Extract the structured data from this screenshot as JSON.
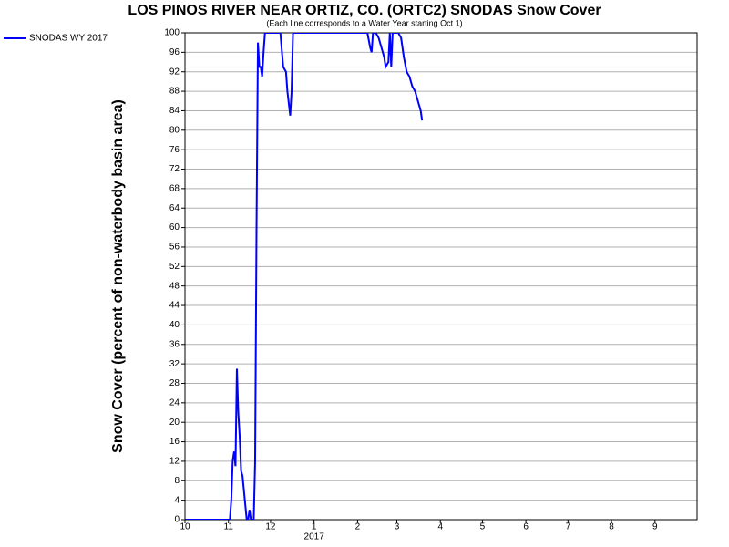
{
  "chart_data": {
    "type": "line",
    "title": "LOS PINOS RIVER NEAR ORTIZ, CO. (ORTC2) SNODAS Snow Cover",
    "subtitle": "(Each line corresponds to a Water Year starting Oct 1)",
    "y_label": "Snow Cover (percent of non-waterbody basin area)",
    "year_label": "2017",
    "xlim": [
      0,
      365
    ],
    "xticks": [
      {
        "value": 0,
        "label": "10"
      },
      {
        "value": 31,
        "label": "11"
      },
      {
        "value": 61,
        "label": "12"
      },
      {
        "value": 92,
        "label": "1"
      },
      {
        "value": 123,
        "label": "2"
      },
      {
        "value": 151,
        "label": "3"
      },
      {
        "value": 182,
        "label": "4"
      },
      {
        "value": 212,
        "label": "5"
      },
      {
        "value": 243,
        "label": "6"
      },
      {
        "value": 273,
        "label": "7"
      },
      {
        "value": 304,
        "label": "8"
      },
      {
        "value": 335,
        "label": "9"
      }
    ],
    "ylim": [
      0,
      100
    ],
    "yticks": [
      0,
      4,
      8,
      12,
      16,
      20,
      24,
      28,
      32,
      36,
      40,
      44,
      48,
      52,
      56,
      60,
      64,
      68,
      72,
      76,
      80,
      84,
      88,
      92,
      96,
      100
    ],
    "grid": true,
    "legend": "top-left",
    "series": [
      {
        "name": "SNODAS WY 2017",
        "color": "#0000ff",
        "x": [
          0,
          32,
          33,
          34,
          35,
          36,
          37,
          38,
          39,
          40,
          41,
          42,
          43,
          44,
          45,
          46,
          47,
          49,
          50,
          51,
          52,
          53,
          54,
          55,
          56,
          57,
          68,
          70,
          72,
          73,
          75,
          76,
          77,
          130,
          132,
          133,
          134,
          136,
          138,
          140,
          142,
          143,
          145,
          146,
          147,
          148,
          152,
          154,
          156,
          158,
          160,
          162,
          164,
          166,
          168,
          169
        ],
        "values": [
          0,
          0,
          4,
          12,
          14,
          11,
          31,
          22,
          17,
          10,
          9,
          6,
          3,
          0,
          0,
          2,
          0,
          0,
          12,
          60,
          98,
          93,
          93,
          91,
          96,
          100,
          100,
          93,
          92,
          88,
          83,
          88,
          100,
          100,
          97,
          96,
          100,
          100,
          99,
          97,
          95,
          93,
          94,
          100,
          93,
          100,
          100,
          99,
          95,
          92,
          91,
          89,
          88,
          86,
          84,
          82
        ]
      }
    ]
  }
}
